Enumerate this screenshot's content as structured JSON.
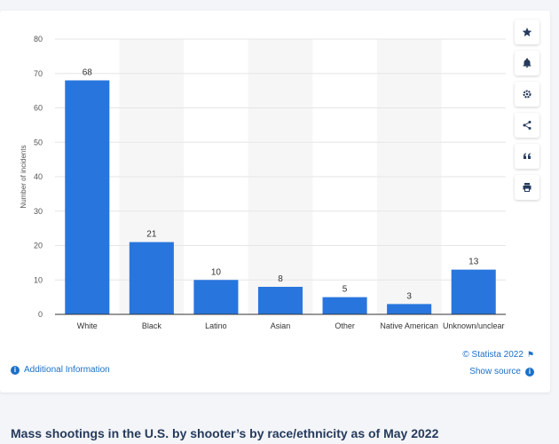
{
  "chart_data": {
    "type": "bar",
    "categories": [
      "White",
      "Black",
      "Latino",
      "Asian",
      "Other",
      "Native American",
      "Unknown/unclear"
    ],
    "values": [
      68,
      21,
      10,
      8,
      5,
      3,
      13
    ],
    "ylabel": "Number of incidents",
    "ylim": [
      0,
      80
    ],
    "yticks": [
      0,
      10,
      20,
      30,
      40,
      50,
      60,
      70,
      80
    ],
    "grid": true,
    "bar_color": "#2876dd",
    "band_color": "#f6f6f6"
  },
  "footer": {
    "additional_info": "Additional Information",
    "copyright": "© Statista 2022",
    "show_source": "Show source"
  },
  "caption": "Mass shootings in the U.S. by shooter’s by race/ethnicity as of May 2022",
  "icons": [
    "star-icon",
    "bell-icon",
    "gear-icon",
    "share-icon",
    "quote-icon",
    "print-icon"
  ]
}
